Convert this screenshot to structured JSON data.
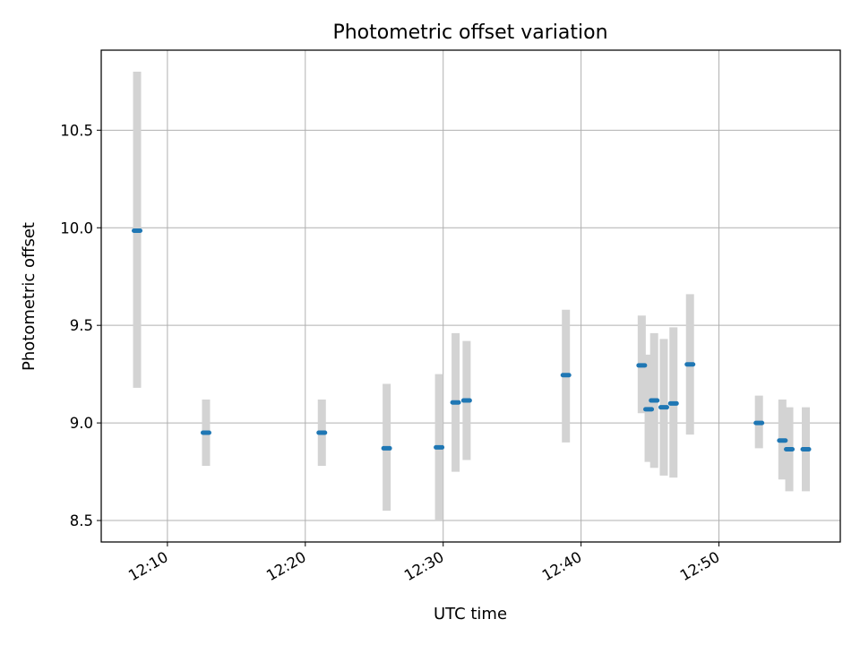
{
  "chart_data": {
    "type": "scatter",
    "title": "Photometric offset variation",
    "xlabel": "UTC time",
    "ylabel": "Photometric offset",
    "xlim": [
      "12:05:12",
      "12:58:48"
    ],
    "ylim": [
      8.39,
      10.91
    ],
    "x_ticks": [
      "12:10",
      "12:20",
      "12:30",
      "12:40",
      "12:50"
    ],
    "y_ticks": [
      "8.5",
      "9.0",
      "9.5",
      "10.0",
      "10.5"
    ],
    "grid": true,
    "legend": "none",
    "series": [
      {
        "marker_color": "#1f77b4",
        "errorbar_color": "#d3d3d3",
        "points": [
          {
            "x": "12:07:48",
            "y": 9.985,
            "ylow": 9.18,
            "yhigh": 10.8
          },
          {
            "x": "12:12:48",
            "y": 8.95,
            "ylow": 8.78,
            "yhigh": 9.12
          },
          {
            "x": "12:21:12",
            "y": 8.95,
            "ylow": 8.78,
            "yhigh": 9.12
          },
          {
            "x": "12:25:54",
            "y": 8.87,
            "ylow": 8.55,
            "yhigh": 9.2
          },
          {
            "x": "12:29:42",
            "y": 8.875,
            "ylow": 8.5,
            "yhigh": 9.25
          },
          {
            "x": "12:30:54",
            "y": 9.105,
            "ylow": 8.75,
            "yhigh": 9.46
          },
          {
            "x": "12:31:42",
            "y": 9.115,
            "ylow": 8.81,
            "yhigh": 9.42
          },
          {
            "x": "12:38:54",
            "y": 9.245,
            "ylow": 8.9,
            "yhigh": 9.58
          },
          {
            "x": "12:44:24",
            "y": 9.295,
            "ylow": 9.05,
            "yhigh": 9.55
          },
          {
            "x": "12:44:54",
            "y": 9.07,
            "ylow": 8.8,
            "yhigh": 9.35
          },
          {
            "x": "12:45:18",
            "y": 9.115,
            "ylow": 8.77,
            "yhigh": 9.46
          },
          {
            "x": "12:46:00",
            "y": 9.08,
            "ylow": 8.73,
            "yhigh": 9.43
          },
          {
            "x": "12:46:42",
            "y": 9.1,
            "ylow": 8.72,
            "yhigh": 9.49
          },
          {
            "x": "12:47:54",
            "y": 9.3,
            "ylow": 8.94,
            "yhigh": 9.66
          },
          {
            "x": "12:52:54",
            "y": 9.0,
            "ylow": 8.87,
            "yhigh": 9.14
          },
          {
            "x": "12:54:36",
            "y": 8.91,
            "ylow": 8.71,
            "yhigh": 9.12
          },
          {
            "x": "12:55:06",
            "y": 8.865,
            "ylow": 8.65,
            "yhigh": 9.08
          },
          {
            "x": "12:56:18",
            "y": 8.865,
            "ylow": 8.65,
            "yhigh": 9.08
          }
        ]
      }
    ]
  }
}
